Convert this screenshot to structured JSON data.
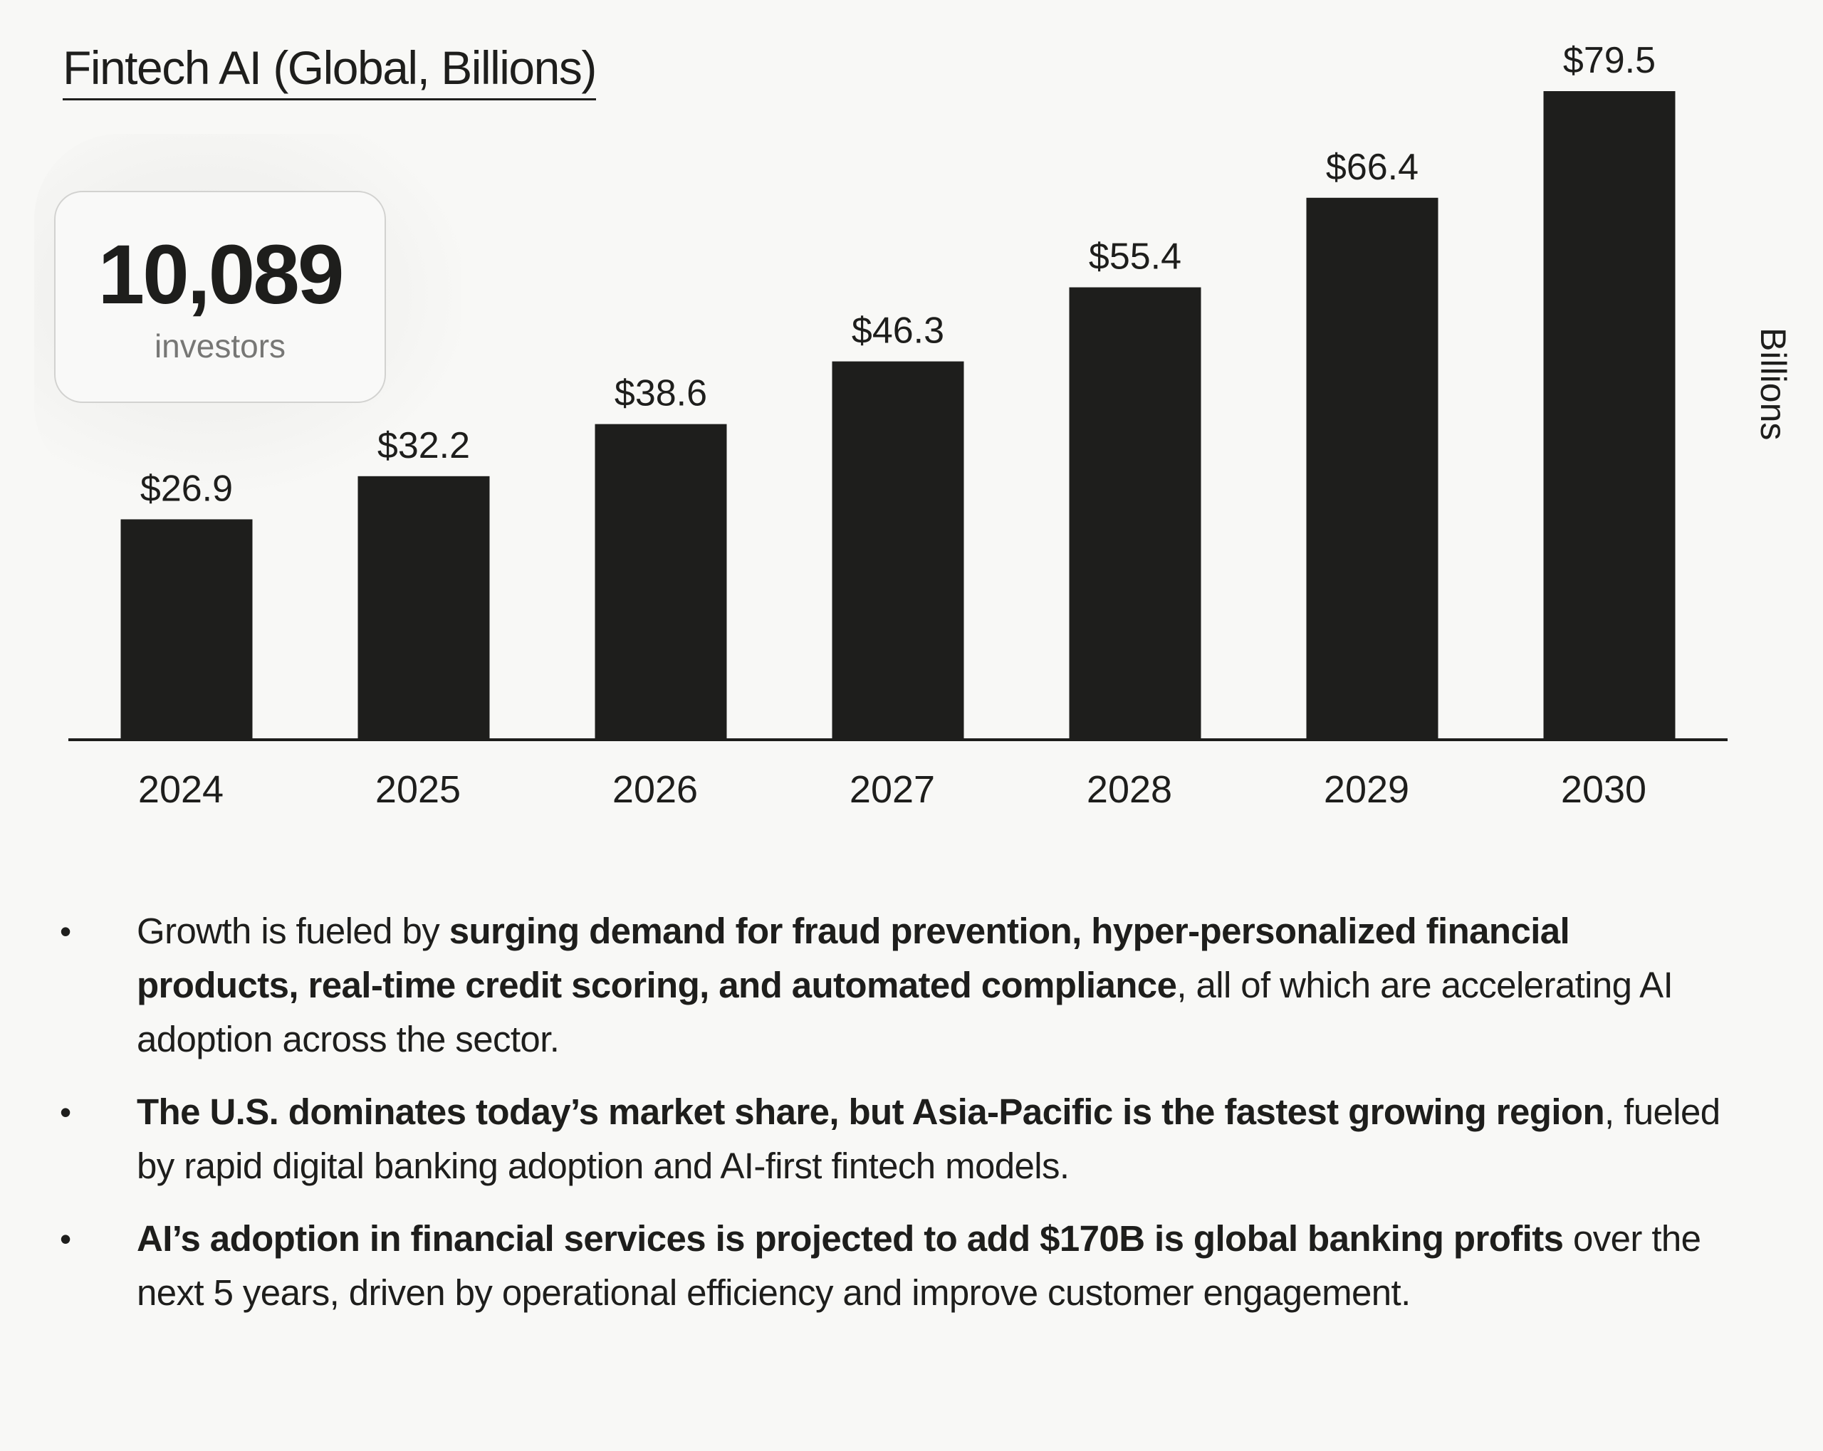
{
  "title": "Fintech AI (Global, Billions)",
  "badge": {
    "number": "10,089",
    "label": "investors"
  },
  "colors": {
    "background": "#f8f8f6",
    "bar": "#1e1e1c",
    "text": "#1e1e1c",
    "muted": "#777775"
  },
  "chart_data": {
    "type": "bar",
    "title": "Fintech AI (Global, Billions)",
    "xlabel": "",
    "ylabel": "Billions",
    "categories": [
      "2024",
      "2025",
      "2026",
      "2027",
      "2028",
      "2029",
      "2030"
    ],
    "values": [
      26.9,
      32.2,
      38.6,
      46.3,
      55.4,
      66.4,
      79.5
    ],
    "data_labels": [
      "$26.9",
      "$32.2",
      "$38.6",
      "$46.3",
      "$55.4",
      "$66.4",
      "$79.5"
    ],
    "ylim": [
      0,
      80
    ],
    "grid": false,
    "legend": "none"
  },
  "bullets": [
    {
      "parts": [
        {
          "text": "Growth is fueled by ",
          "bold": false
        },
        {
          "text": "surging demand for fraud prevention, hyper-personalized financial products, real-time credit scoring, and automated compliance",
          "bold": true
        },
        {
          "text": ", all of which are accelerating AI adoption across the sector.",
          "bold": false
        }
      ]
    },
    {
      "parts": [
        {
          "text": "The U.S. dominates today’s market share, but Asia-Pacific is the fastest growing region",
          "bold": true
        },
        {
          "text": ", fueled by rapid digital banking adoption and AI-first fintech models.",
          "bold": false
        }
      ]
    },
    {
      "parts": [
        {
          "text": "AI’s adoption in financial services is projected to add $170B is global banking profits",
          "bold": true
        },
        {
          "text": " over the next 5 years, driven by operational efficiency and improve customer engagement.",
          "bold": false
        }
      ]
    }
  ]
}
